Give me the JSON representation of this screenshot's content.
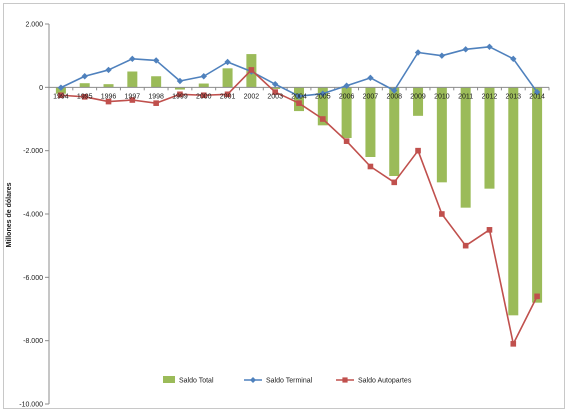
{
  "chart_data": {
    "type": "bar+line",
    "title": "",
    "ylabel": "Millones de dólares",
    "xlabel": "",
    "ylim": [
      -10000,
      2000
    ],
    "yticks": [
      2000,
      0,
      -2000,
      -4000,
      -6000,
      -8000,
      -10000
    ],
    "ytick_labels": [
      "2.000",
      "0",
      "-2.000",
      "-4.000",
      "-6.000",
      "-8.000",
      "-10.000"
    ],
    "categories": [
      "1994",
      "1995",
      "1996",
      "1997",
      "1998",
      "1999",
      "2000",
      "2001",
      "2002",
      "2003",
      "2004",
      "2005",
      "2006",
      "2007",
      "2008",
      "2009",
      "2010",
      "2011",
      "2012",
      "2013",
      "2014"
    ],
    "gridlines": false,
    "legend_position": "bottom",
    "series": [
      {
        "name": "Saldo Total",
        "kind": "bar",
        "color": "#9bbb59",
        "values": [
          -200,
          130,
          100,
          500,
          350,
          -70,
          120,
          600,
          1050,
          -50,
          -750,
          -1200,
          -1600,
          -2200,
          -2800,
          -900,
          -3000,
          -3800,
          -3200,
          -7200,
          -6800
        ]
      },
      {
        "name": "Saldo Terminal",
        "kind": "line",
        "color": "#4f81bd",
        "marker": "diamond",
        "values": [
          -10,
          350,
          550,
          900,
          850,
          200,
          350,
          800,
          500,
          100,
          -280,
          -200,
          50,
          300,
          -100,
          1100,
          1000,
          1200,
          1280,
          900,
          -150
        ]
      },
      {
        "name": "Saldo Autopartes",
        "kind": "line",
        "color": "#c0504d",
        "marker": "square",
        "values": [
          -250,
          -300,
          -450,
          -400,
          -500,
          -220,
          -250,
          -220,
          550,
          -150,
          -500,
          -1000,
          -1700,
          -2500,
          -3000,
          -2000,
          -4000,
          -5000,
          -4500,
          -8100,
          -6600
        ]
      }
    ]
  }
}
